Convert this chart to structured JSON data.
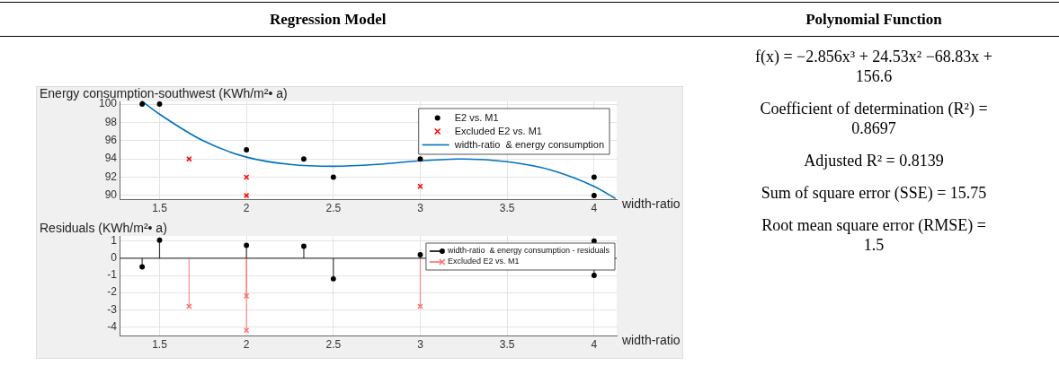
{
  "chart_data": [
    {
      "type": "scatter",
      "title": "Regression Model",
      "ylabel": "Energy consumption-southwest (KWh/m²• a)",
      "xlabel": "width-ratio",
      "xlim": [
        1.27,
        4.13
      ],
      "ylim": [
        89.6,
        100.3
      ],
      "xticks": [
        1.5,
        2,
        2.5,
        3,
        3.5,
        4
      ],
      "yticks": [
        90,
        92,
        94,
        96,
        98,
        100
      ],
      "grid": true,
      "legend": "top right",
      "series": [
        {
          "name": "E2 vs. M1",
          "color": "#000000",
          "marker": "circle",
          "x": [
            1.4,
            1.5,
            2,
            2.33,
            2.5,
            3,
            4,
            4
          ],
          "values": [
            100,
            100,
            95,
            94,
            92,
            94,
            92,
            90
          ]
        },
        {
          "name": "Excluded E2 vs. M1",
          "color": "#ff0000",
          "marker": "cross",
          "x": [
            1.67,
            2,
            2,
            3
          ],
          "values": [
            94,
            92,
            90,
            91
          ]
        },
        {
          "name": "width-ratio  & energy consumption",
          "type": "line",
          "color": "#0072bd",
          "marker": "none",
          "x": [
            1.4,
            1.5,
            1.75,
            2,
            2.25,
            2.5,
            2.75,
            3,
            3.25,
            3.5,
            3.75,
            4,
            4.12
          ],
          "values": [
            100.3,
            98.9,
            96.0,
            94.2,
            93.4,
            93.2,
            93.4,
            93.8,
            94.0,
            93.7,
            92.8,
            91.0,
            89.7
          ]
        }
      ]
    },
    {
      "type": "lollipop",
      "ylabel": "Residuals (KWh/m²• a)",
      "xlabel": "width-ratio",
      "xlim": [
        1.27,
        4.13
      ],
      "ylim": [
        -4.5,
        1.3
      ],
      "xticks": [
        1.5,
        2,
        2.5,
        3,
        3.5,
        4
      ],
      "yticks": [
        -4,
        -3,
        -2,
        -1,
        0,
        1
      ],
      "grid": true,
      "legend": "top right",
      "series": [
        {
          "name": "width-ratio  & energy consumption - residuals",
          "color": "#000000",
          "marker": "circle",
          "x": [
            1.4,
            1.5,
            2,
            2.33,
            2.5,
            3,
            4,
            4
          ],
          "values": [
            -0.5,
            1.05,
            0.75,
            0.7,
            -1.2,
            0.2,
            1.0,
            -1.0
          ]
        },
        {
          "name": "Excluded E2 vs. M1",
          "color": "#ff6b6b",
          "marker": "cross",
          "x": [
            1.67,
            2,
            2,
            3
          ],
          "values": [
            -2.8,
            -2.2,
            -4.2,
            -2.8
          ]
        }
      ]
    },
    {
      "type": "other",
      "title": "Polynomial Function",
      "annotations": [
        "f(x) = −2.856x³ + 24.53x² −68.83x + 156.6",
        "Coefficient of determination (R²) = 0.8697",
        "Adjusted R² = 0.8139",
        "Sum of square error (SSE) = 15.75",
        "Root mean square error (RMSE) = 1.5"
      ]
    }
  ]
}
